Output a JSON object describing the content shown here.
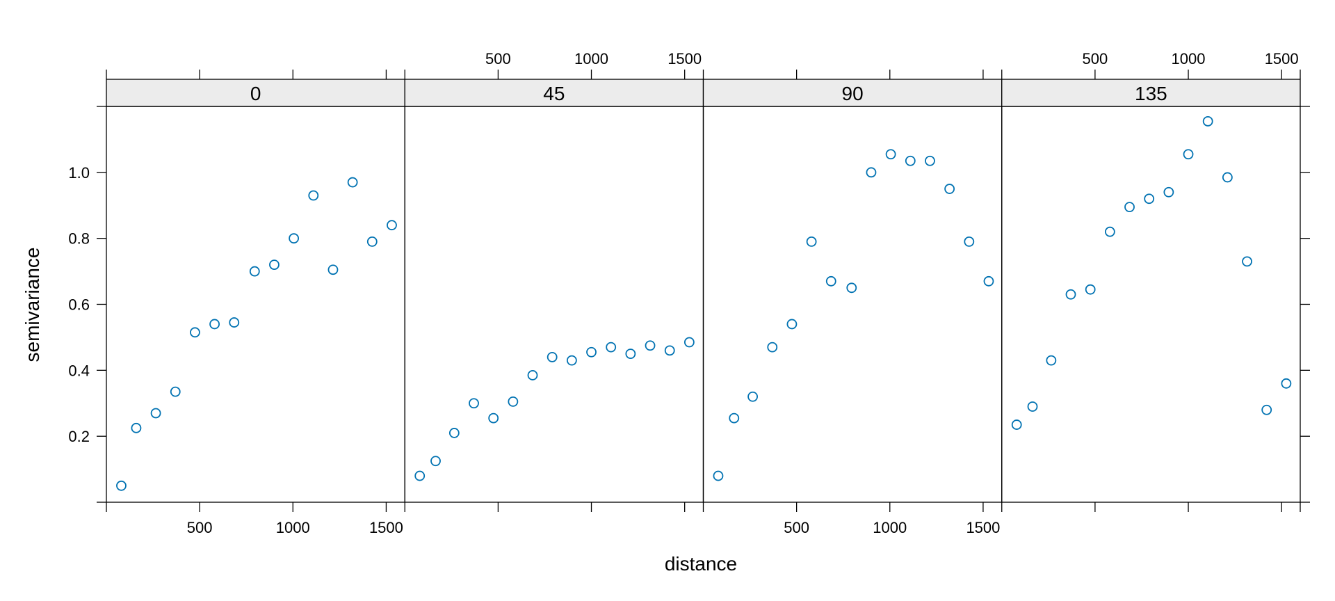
{
  "chart_data": {
    "type": "scatter",
    "layout": "lattice panels, one per direction",
    "xlabel": "distance",
    "ylabel": "semivariance",
    "xlim": [
      0,
      1600
    ],
    "ylim": [
      0,
      1.2
    ],
    "x_ticks": [
      500,
      1000,
      1500
    ],
    "y_ticks": [
      0.2,
      0.4,
      0.6,
      0.8,
      1.0
    ],
    "y_tick_labels": [
      "0.2",
      "0.4",
      "0.6",
      "0.8",
      "1.0"
    ],
    "point_color": "#0072B2",
    "marker": "open-circle",
    "panels": [
      {
        "label": "0",
        "x": [
          80,
          160,
          265,
          370,
          475,
          580,
          685,
          795,
          900,
          1005,
          1110,
          1215,
          1320,
          1425,
          1530
        ],
        "y": [
          0.05,
          0.225,
          0.27,
          0.335,
          0.515,
          0.54,
          0.545,
          0.7,
          0.72,
          0.8,
          0.93,
          0.705,
          0.97,
          0.79,
          0.84
        ]
      },
      {
        "label": "45",
        "x": [
          80,
          165,
          265,
          370,
          475,
          580,
          685,
          790,
          895,
          1000,
          1105,
          1210,
          1315,
          1420,
          1525
        ],
        "y": [
          0.08,
          0.125,
          0.21,
          0.3,
          0.255,
          0.305,
          0.385,
          0.44,
          0.43,
          0.455,
          0.47,
          0.45,
          0.475,
          0.46,
          0.485
        ]
      },
      {
        "label": "90",
        "x": [
          80,
          165,
          265,
          370,
          475,
          580,
          685,
          795,
          900,
          1005,
          1110,
          1215,
          1320,
          1425,
          1530
        ],
        "y": [
          0.08,
          0.255,
          0.32,
          0.47,
          0.54,
          0.79,
          0.67,
          0.65,
          1.0,
          1.055,
          1.035,
          1.035,
          0.95,
          0.79,
          0.67
        ]
      },
      {
        "label": "135",
        "x": [
          80,
          165,
          265,
          370,
          475,
          580,
          685,
          790,
          895,
          1000,
          1105,
          1210,
          1315,
          1420,
          1525
        ],
        "y": [
          0.235,
          0.29,
          0.43,
          0.63,
          0.645,
          0.82,
          0.895,
          0.92,
          0.94,
          1.055,
          1.155,
          0.985,
          0.73,
          0.28,
          0.36
        ]
      }
    ]
  }
}
